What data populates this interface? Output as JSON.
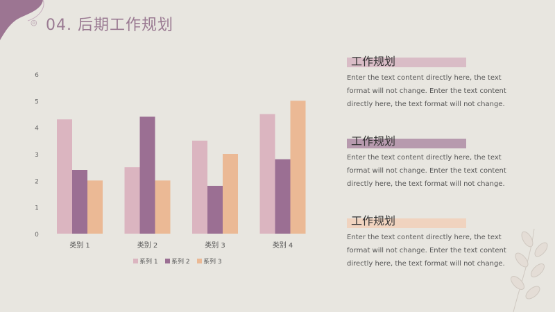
{
  "header": {
    "icon": "circle-mark-icon",
    "title": "04. 后期工作规划"
  },
  "sections": [
    {
      "heading": "工作规划",
      "bar_color": "#d9bcc6",
      "body": "Enter the text content directly here, the text format will not change. Enter the text content directly here, the text format will not change."
    },
    {
      "heading": "工作规划",
      "bar_color": "#b79aae",
      "body": "Enter the text content directly here, the text format will not change. Enter the text content directly here, the text format will not change."
    },
    {
      "heading": "工作规划",
      "bar_color": "#f0d3bf",
      "body": "Enter the text content directly here, the text format will not change. Enter the text content directly here, the text format will not change."
    }
  ],
  "chart_data": {
    "type": "bar",
    "categories": [
      "类别 1",
      "类别 2",
      "类别 3",
      "类别 4"
    ],
    "series": [
      {
        "name": "系列 1",
        "color": "#dbb5c0",
        "values": [
          4.3,
          2.5,
          3.5,
          4.5
        ]
      },
      {
        "name": "系列 2",
        "color": "#9b6f93",
        "values": [
          2.4,
          4.4,
          1.8,
          2.8
        ]
      },
      {
        "name": "系列 3",
        "color": "#ebb995",
        "values": [
          2.0,
          2.0,
          3.0,
          5.0
        ]
      }
    ],
    "ylim": [
      0,
      6
    ],
    "yticks": [
      "0",
      "1",
      "2",
      "3",
      "4",
      "5",
      "6"
    ],
    "grid": false,
    "legend": "bottom"
  }
}
